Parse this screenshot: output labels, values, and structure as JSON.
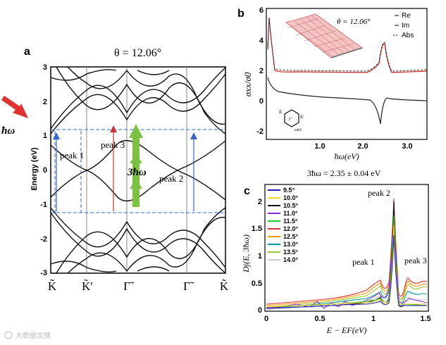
{
  "watermark": "大数据文摘",
  "panel_a": {
    "letter": "a",
    "title": "θ = 12.06°",
    "hw_label": "ħω",
    "ylabel": "Energy (eV)",
    "yticks": [
      "3",
      "2",
      "1",
      "0",
      "-1",
      "-2",
      "-3"
    ],
    "xticks": [
      "K̃",
      "K̃′",
      "Γ̃",
      "Γ̃",
      "K̃"
    ],
    "peak1": "peak 1",
    "peak2": "peak 2",
    "peak3": "peak 3",
    "three_hw": "3ħω"
  },
  "panel_b": {
    "letter": "b",
    "ylabel": "σxx/σ0",
    "xlabel": "ħω(eV)",
    "inset_title": "θ = 12.06°",
    "legend": [
      "Re",
      "Im",
      "Abs"
    ],
    "yticks": [
      "6",
      "4",
      "2",
      "0",
      "-2"
    ],
    "xticks": [
      "1.0",
      "2.0",
      "3.0"
    ],
    "bz_labels": {
      "k1": "K̃",
      "k2": "K̃′",
      "gamma": "Γ̃",
      "mbz": "mBZ"
    }
  },
  "panel_c": {
    "letter": "c",
    "caption": "3ħω = 2.35 ± 0.04 eV",
    "ylabel": "Dj(E, 3ħω)",
    "xlabel": "E − EF(eV)",
    "peak1": "peak 1",
    "peak2": "peak 2",
    "peak3": "peak 3",
    "yticks": [
      "2",
      "1.5",
      "1",
      "0.5",
      "0"
    ],
    "xticks": [
      "0",
      "0.5",
      "1",
      "1.5"
    ],
    "legend": [
      {
        "label": "9.5°",
        "color": "#2222bb"
      },
      {
        "label": "10.0°",
        "color": "#ffd21f"
      },
      {
        "label": "10.5°",
        "color": "#111111"
      },
      {
        "label": "11.0°",
        "color": "#8a2be2"
      },
      {
        "label": "11.5°",
        "color": "#22cc22"
      },
      {
        "label": "12.0°",
        "color": "#e03030"
      },
      {
        "label": "12.5°",
        "color": "#ff9900"
      },
      {
        "label": "13.0°",
        "color": "#009999"
      },
      {
        "label": "13.5°",
        "color": "#99cc33"
      },
      {
        "label": "14.0°",
        "color": "#cccccc"
      }
    ]
  }
}
